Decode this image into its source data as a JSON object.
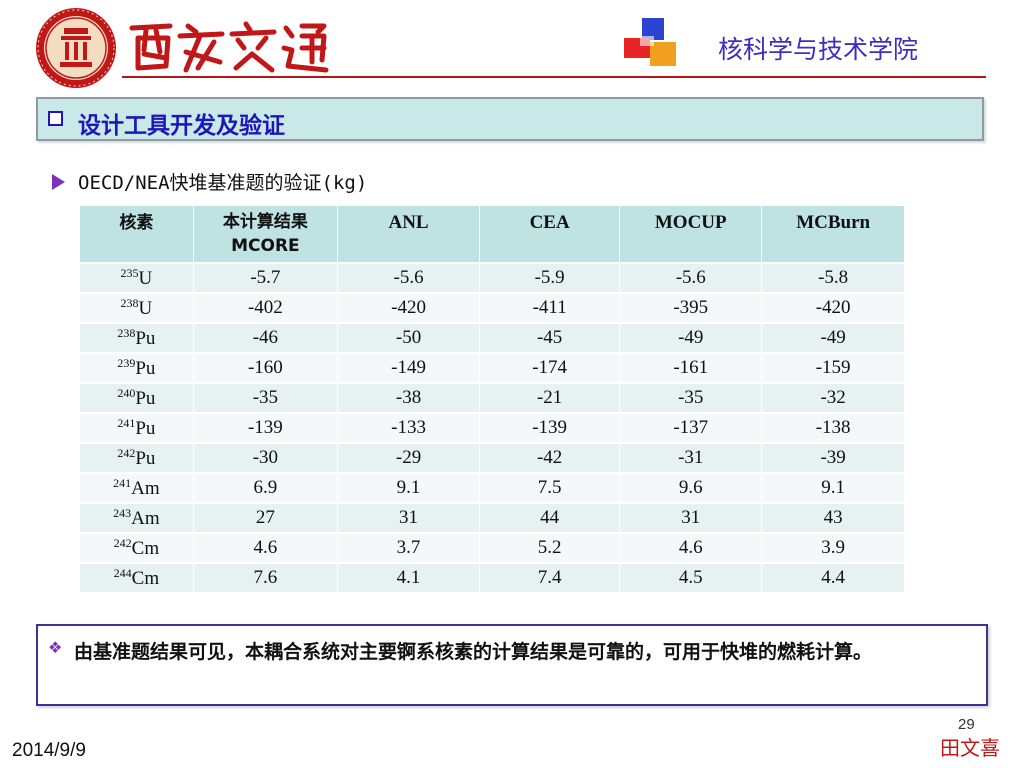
{
  "header": {
    "university_name": "西安交通大學",
    "college": "核科学与技术学院"
  },
  "section": {
    "title": "设计工具开发及验证"
  },
  "subtitle": "OECD/NEA快堆基准题的验证(kg)",
  "table": {
    "headers": [
      "核素",
      "本计算结果\nMCORE",
      "ANL",
      "CEA",
      "MOCUP",
      "MCBurn"
    ],
    "rows": [
      {
        "mass": "235",
        "element": "U",
        "values": [
          "-5.7",
          "-5.6",
          "-5.9",
          "-5.6",
          "-5.8"
        ]
      },
      {
        "mass": "238",
        "element": "U",
        "values": [
          "-402",
          "-420",
          "-411",
          "-395",
          "-420"
        ]
      },
      {
        "mass": "238",
        "element": "Pu",
        "values": [
          "-46",
          "-50",
          "-45",
          "-49",
          "-49"
        ]
      },
      {
        "mass": "239",
        "element": "Pu",
        "values": [
          "-160",
          "-149",
          "-174",
          "-161",
          "-159"
        ]
      },
      {
        "mass": "240",
        "element": "Pu",
        "values": [
          "-35",
          "-38",
          "-21",
          "-35",
          "-32"
        ]
      },
      {
        "mass": "241",
        "element": "Pu",
        "values": [
          "-139",
          "-133",
          "-139",
          "-137",
          "-138"
        ]
      },
      {
        "mass": "242",
        "element": "Pu",
        "values": [
          "-30",
          "-29",
          "-42",
          "-31",
          "-39"
        ]
      },
      {
        "mass": "241",
        "element": "Am",
        "values": [
          "6.9",
          "9.1",
          "7.5",
          "9.6",
          "9.1"
        ]
      },
      {
        "mass": "243",
        "element": "Am",
        "values": [
          "27",
          "31",
          "44",
          "31",
          "43"
        ]
      },
      {
        "mass": "242",
        "element": "Cm",
        "values": [
          "4.6",
          "3.7",
          "5.2",
          "4.6",
          "3.9"
        ]
      },
      {
        "mass": "244",
        "element": "Cm",
        "values": [
          "7.6",
          "4.1",
          "7.4",
          "4.5",
          "4.4"
        ]
      }
    ]
  },
  "conclusion": "由基准题结果可见，本耦合系统对主要锕系核素的计算结果是可靠的，可用于快堆的燃耗计算。",
  "footer": {
    "page_number": "29",
    "date": "2014/9/9",
    "author": "田文喜"
  },
  "colors": {
    "accent_blue": "#1d16b8",
    "college_blue": "#3d2ec0",
    "seal_red": "#c01818",
    "table_header_bg": "#bfe2e2",
    "section_bar_bg": "#c9e8e8"
  },
  "icons": {
    "seal": "university-seal-icon",
    "section_marker": "checkbox-icon",
    "subtitle_marker": "arrow-right-icon",
    "conclusion_marker": "diamond-cluster-icon"
  }
}
